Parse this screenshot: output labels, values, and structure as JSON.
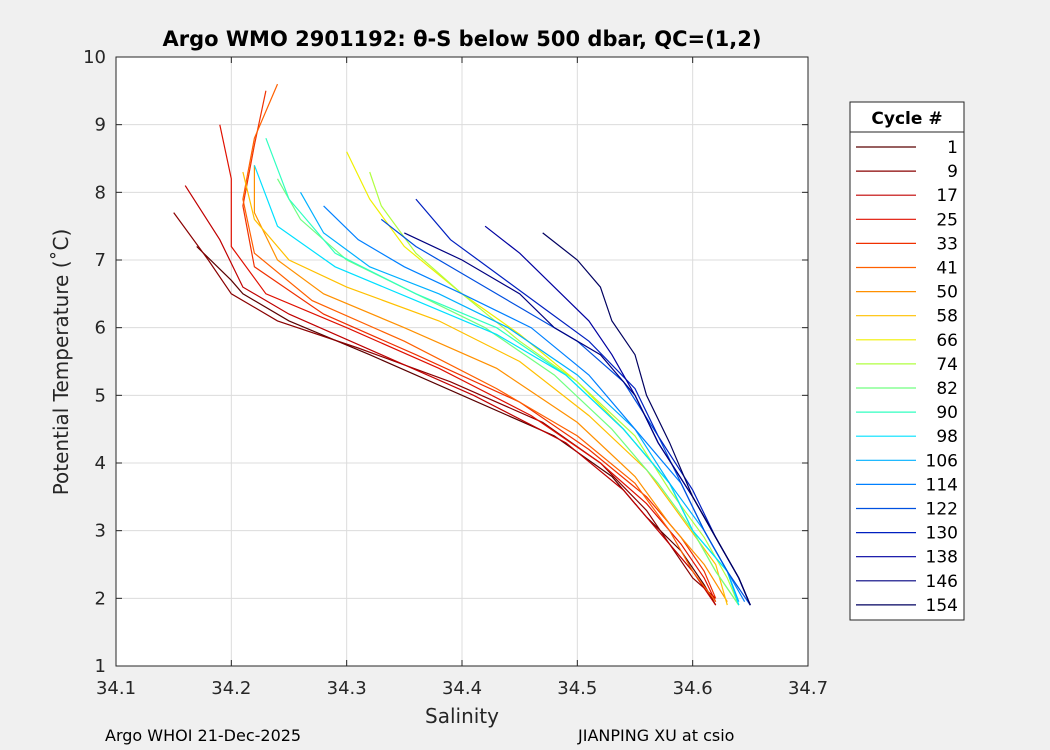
{
  "chart_data": {
    "type": "line",
    "title": "Argo WMO 2901192: θ-S below 500 dbar,  QC=(1,2)",
    "xlabel": "Salinity",
    "ylabel": "Potential Temperature (˚C)",
    "xlim": [
      34.1,
      34.7
    ],
    "ylim": [
      1,
      10
    ],
    "xticks": [
      "34.1",
      "34.2",
      "34.3",
      "34.4",
      "34.5",
      "34.6",
      "34.7"
    ],
    "yticks": [
      "1",
      "2",
      "3",
      "4",
      "5",
      "6",
      "7",
      "8",
      "9",
      "10"
    ],
    "grid": true,
    "legend": {
      "title": "Cycle #",
      "placement": "right",
      "entries": [
        "1",
        "9",
        "17",
        "25",
        "33",
        "41",
        "50",
        "58",
        "66",
        "74",
        "82",
        "90",
        "98",
        "106",
        "114",
        "122",
        "130",
        "138",
        "146",
        "154"
      ],
      "colors": [
        "#5a0000",
        "#8a0000",
        "#c00000",
        "#e01000",
        "#f03000",
        "#ff6000",
        "#ff9000",
        "#ffc000",
        "#f0f000",
        "#b0ff40",
        "#70ff80",
        "#30ffc0",
        "#00e0ff",
        "#00b0ff",
        "#0080ff",
        "#0050e0",
        "#0020c0",
        "#0000a0",
        "#000080",
        "#000060"
      ]
    },
    "series": [
      {
        "name": "1",
        "x": [
          34.17,
          34.2,
          34.21,
          34.25,
          34.32,
          34.4,
          34.48,
          34.53,
          34.56,
          34.59,
          34.61,
          34.62
        ],
        "y": [
          7.2,
          6.7,
          6.5,
          6.1,
          5.6,
          5.0,
          4.4,
          3.8,
          3.2,
          2.7,
          2.2,
          1.9
        ]
      },
      {
        "name": "9",
        "x": [
          34.15,
          34.18,
          34.2,
          34.24,
          34.31,
          34.39,
          34.47,
          34.52,
          34.56,
          34.58,
          34.6,
          34.62
        ],
        "y": [
          7.7,
          7.0,
          6.5,
          6.1,
          5.7,
          5.2,
          4.6,
          4.0,
          3.3,
          2.8,
          2.3,
          2.0
        ]
      },
      {
        "name": "17",
        "x": [
          34.16,
          34.19,
          34.21,
          34.25,
          34.33,
          34.41,
          34.49,
          34.54,
          34.57,
          34.6,
          34.62
        ],
        "y": [
          8.1,
          7.3,
          6.6,
          6.2,
          5.6,
          5.0,
          4.3,
          3.6,
          3.0,
          2.4,
          1.9
        ]
      },
      {
        "name": "25",
        "x": [
          34.19,
          34.2,
          34.2,
          34.23,
          34.3,
          34.38,
          34.46,
          34.52,
          34.56,
          34.59,
          34.61,
          34.62
        ],
        "y": [
          9.0,
          8.2,
          7.2,
          6.5,
          6.0,
          5.4,
          4.7,
          4.0,
          3.4,
          2.8,
          2.3,
          1.95
        ]
      },
      {
        "name": "33",
        "x": [
          34.23,
          34.22,
          34.21,
          34.22,
          34.28,
          34.36,
          34.45,
          34.51,
          34.56,
          34.59,
          34.61,
          34.62
        ],
        "y": [
          9.5,
          8.7,
          7.8,
          6.9,
          6.2,
          5.6,
          4.9,
          4.2,
          3.5,
          2.9,
          2.4,
          2.0
        ]
      },
      {
        "name": "41",
        "x": [
          34.24,
          34.22,
          34.21,
          34.22,
          34.27,
          34.35,
          34.43,
          34.5,
          34.55,
          34.58,
          34.6,
          34.62
        ],
        "y": [
          9.6,
          8.8,
          7.9,
          7.1,
          6.4,
          5.8,
          5.1,
          4.4,
          3.7,
          3.0,
          2.4,
          1.95
        ]
      },
      {
        "name": "50",
        "x": [
          34.22,
          34.22,
          34.24,
          34.28,
          34.35,
          34.43,
          34.5,
          34.55,
          34.58,
          34.61,
          34.63
        ],
        "y": [
          8.4,
          7.7,
          7.0,
          6.5,
          6.0,
          5.4,
          4.6,
          3.8,
          3.1,
          2.5,
          1.95
        ]
      },
      {
        "name": "58",
        "x": [
          34.21,
          34.22,
          34.25,
          34.3,
          34.38,
          34.45,
          34.51,
          34.56,
          34.59,
          34.62,
          34.63
        ],
        "y": [
          8.3,
          7.6,
          7.0,
          6.6,
          6.1,
          5.5,
          4.7,
          3.9,
          3.2,
          2.5,
          1.9
        ]
      },
      {
        "name": "66",
        "x": [
          34.3,
          34.32,
          34.35,
          34.4,
          34.45,
          34.5,
          34.54,
          34.58,
          34.6,
          34.62,
          34.64
        ],
        "y": [
          8.6,
          7.9,
          7.2,
          6.5,
          5.9,
          5.2,
          4.5,
          3.7,
          3.0,
          2.4,
          1.9
        ]
      },
      {
        "name": "74",
        "x": [
          34.32,
          34.33,
          34.36,
          34.4,
          34.45,
          34.5,
          34.55,
          34.58,
          34.61,
          34.63,
          34.64
        ],
        "y": [
          8.3,
          7.8,
          7.1,
          6.5,
          5.8,
          5.2,
          4.4,
          3.6,
          2.9,
          2.3,
          1.9
        ]
      },
      {
        "name": "82",
        "x": [
          34.24,
          34.26,
          34.3,
          34.36,
          34.42,
          34.48,
          34.53,
          34.57,
          34.6,
          34.62,
          34.64
        ],
        "y": [
          8.2,
          7.6,
          7.0,
          6.5,
          6.0,
          5.3,
          4.5,
          3.7,
          3.0,
          2.4,
          1.9
        ]
      },
      {
        "name": "90",
        "x": [
          34.23,
          34.25,
          34.29,
          34.36,
          34.43,
          34.49,
          34.54,
          34.58,
          34.6,
          34.63,
          34.64
        ],
        "y": [
          8.8,
          7.9,
          7.1,
          6.5,
          6.0,
          5.3,
          4.5,
          3.7,
          3.0,
          2.4,
          1.9
        ]
      },
      {
        "name": "98",
        "x": [
          34.22,
          34.24,
          34.29,
          34.36,
          34.43,
          34.49,
          34.54,
          34.58,
          34.6,
          34.63,
          34.64
        ],
        "y": [
          8.4,
          7.5,
          6.9,
          6.4,
          5.9,
          5.3,
          4.5,
          3.7,
          3.0,
          2.4,
          1.9
        ]
      },
      {
        "name": "106",
        "x": [
          34.26,
          34.28,
          34.32,
          34.38,
          34.44,
          34.5,
          34.55,
          34.58,
          34.61,
          34.63,
          34.64
        ],
        "y": [
          8.0,
          7.4,
          6.9,
          6.5,
          6.0,
          5.3,
          4.5,
          3.7,
          3.0,
          2.4,
          1.95
        ]
      },
      {
        "name": "114",
        "x": [
          34.28,
          34.31,
          34.35,
          34.4,
          34.46,
          34.51,
          34.55,
          34.59,
          34.61,
          34.63,
          34.645
        ],
        "y": [
          7.8,
          7.3,
          6.9,
          6.5,
          6.0,
          5.3,
          4.5,
          3.7,
          3.0,
          2.4,
          1.95
        ]
      },
      {
        "name": "122",
        "x": [
          34.33,
          34.36,
          34.4,
          34.45,
          34.5,
          34.54,
          34.57,
          34.59,
          34.61,
          34.63,
          34.65
        ],
        "y": [
          7.6,
          7.2,
          6.8,
          6.3,
          5.8,
          5.2,
          4.4,
          3.7,
          3.0,
          2.4,
          1.9
        ]
      },
      {
        "name": "130",
        "x": [
          34.36,
          34.39,
          34.43,
          34.47,
          34.51,
          34.55,
          34.57,
          34.6,
          34.62,
          34.64,
          34.65
        ],
        "y": [
          7.9,
          7.3,
          6.8,
          6.3,
          5.8,
          5.1,
          4.4,
          3.6,
          2.9,
          2.3,
          1.9
        ]
      },
      {
        "name": "138",
        "x": [
          34.42,
          34.45,
          34.48,
          34.51,
          34.53,
          34.55,
          34.57,
          34.6,
          34.62,
          34.64,
          34.65
        ],
        "y": [
          7.5,
          7.1,
          6.6,
          6.1,
          5.6,
          5.0,
          4.3,
          3.5,
          2.9,
          2.3,
          1.9
        ]
      },
      {
        "name": "146",
        "x": [
          34.35,
          34.4,
          34.45,
          34.48,
          34.52,
          34.55,
          34.57,
          34.6,
          34.62,
          34.64,
          34.65
        ],
        "y": [
          7.4,
          7.0,
          6.5,
          6.0,
          5.6,
          5.0,
          4.3,
          3.5,
          2.9,
          2.3,
          1.9
        ]
      },
      {
        "name": "154",
        "x": [
          34.47,
          34.5,
          34.52,
          34.53,
          34.55,
          34.56,
          34.58,
          34.6,
          34.62,
          34.64,
          34.65
        ],
        "y": [
          7.4,
          7.0,
          6.6,
          6.1,
          5.6,
          5.0,
          4.3,
          3.5,
          2.9,
          2.3,
          1.9
        ]
      }
    ]
  },
  "footer": {
    "left": "Argo WHOI 21-Dec-2025",
    "right": "JIANPING XU at csio"
  }
}
